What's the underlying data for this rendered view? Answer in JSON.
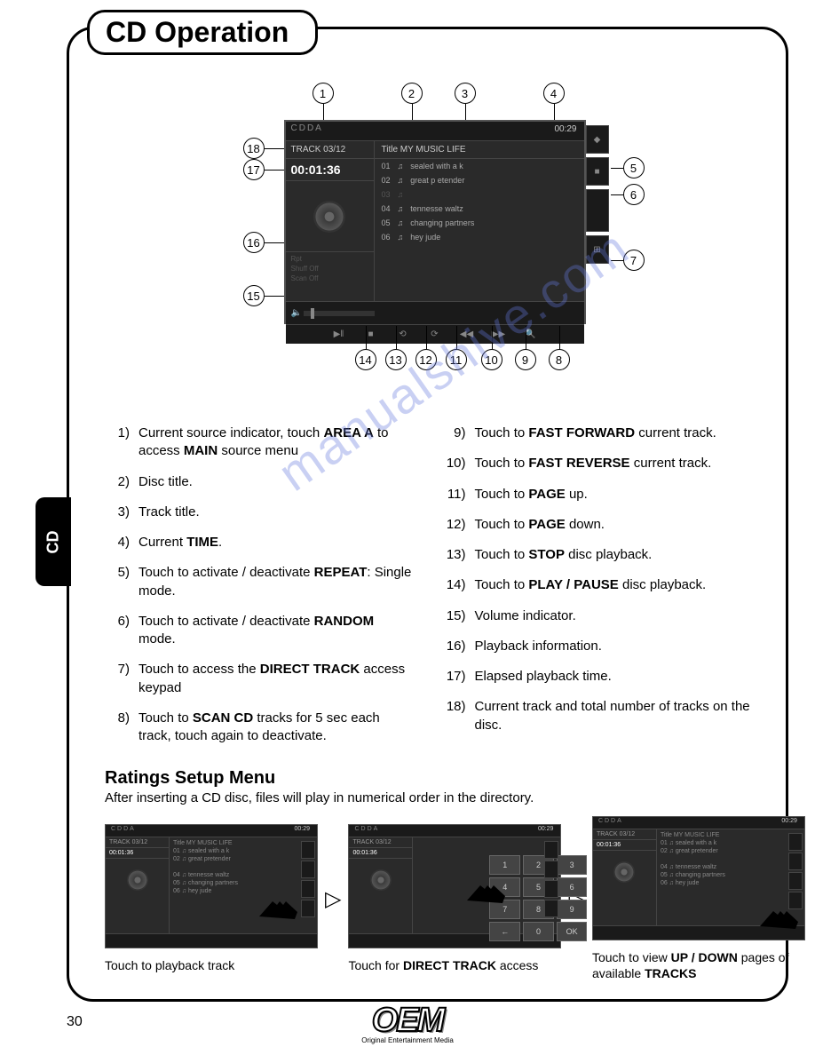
{
  "page_title": "CD Operation",
  "side_tab": "CD",
  "page_number": "30",
  "watermark": "manualshive.com",
  "logo": {
    "text": "OEM",
    "subtitle": "Original Entertainment Media"
  },
  "screen": {
    "source_label": "CDDA",
    "clock": "00:29",
    "track_counter": "TRACK 03/12",
    "elapsed": "00:01:36",
    "disc_title_label": "Title MY MUSIC LIFE",
    "tracks": [
      {
        "num": "01",
        "name": "sealed with a k"
      },
      {
        "num": "02",
        "name": "great p etender"
      },
      {
        "num": "03",
        "name": ""
      },
      {
        "num": "04",
        "name": "tennesse waltz"
      },
      {
        "num": "05",
        "name": "changing partners"
      },
      {
        "num": "06",
        "name": "hey jude"
      }
    ],
    "info_lines": [
      "Rpt",
      "Shuff Off",
      "Scan Off"
    ],
    "side_icons": [
      "◆",
      "■",
      "",
      "⊞"
    ],
    "ctrl_icons": [
      "▶‖",
      "■",
      "⟲",
      "⟳",
      "◀◀",
      "▶▶",
      "🔍"
    ]
  },
  "callouts_top": [
    "1",
    "2",
    "3",
    "4"
  ],
  "callouts_left": [
    "18",
    "17",
    "16",
    "15"
  ],
  "callouts_right": [
    "5",
    "6",
    "7"
  ],
  "callouts_bottom": [
    "14",
    "13",
    "12",
    "11",
    "10",
    "9",
    "8"
  ],
  "instructions_left": [
    {
      "n": "1)",
      "html": "Current source indicator, touch <b>AREA A</b> to access <b>MAIN</b> source menu"
    },
    {
      "n": "2)",
      "html": "Disc title."
    },
    {
      "n": "3)",
      "html": "Track title."
    },
    {
      "n": "4)",
      "html": "Current <b>TIME</b>."
    },
    {
      "n": "5)",
      "html": "Touch to activate / deactivate <b>REPEAT</b>: Single mode."
    },
    {
      "n": "6)",
      "html": "Touch to activate / deactivate <b>RANDOM</b> mode."
    },
    {
      "n": "7)",
      "html": "Touch to access the <b>DIRECT TRACK</b> access keypad"
    },
    {
      "n": "8)",
      "html": "Touch to <b>SCAN CD</b> tracks for 5 sec each track, touch again to deactivate."
    }
  ],
  "instructions_right": [
    {
      "n": "9)",
      "html": "Touch to <b>FAST FORWARD</b> current track."
    },
    {
      "n": "10)",
      "html": "Touch to <b>FAST REVERSE</b> current track."
    },
    {
      "n": "11)",
      "html": "Touch to <b>PAGE</b> up."
    },
    {
      "n": "12)",
      "html": "Touch to <b>PAGE</b> down."
    },
    {
      "n": "13)",
      "html": "Touch to <b>STOP</b> disc playback."
    },
    {
      "n": "14)",
      "html": "Touch to <b>PLAY / PAUSE</b> disc playback."
    },
    {
      "n": "15)",
      "html": "Volume indicator."
    },
    {
      "n": "16)",
      "html": "Playback information."
    },
    {
      "n": "17)",
      "html": "Elapsed playback time."
    },
    {
      "n": "18)",
      "html": "Current track and total number of tracks on the disc."
    }
  ],
  "ratings": {
    "heading": "Ratings Setup Menu",
    "subtitle": "After inserting a CD disc, files will play in numerical order in the directory.",
    "captions": [
      "Touch to playback track",
      "Touch for <b>DIRECT TRACK</b> access",
      "Touch to view <b>UP / DOWN</b> pages of available <b>TRACKS</b>"
    ],
    "keypad": [
      "1",
      "2",
      "3",
      "4",
      "5",
      "6",
      "7",
      "8",
      "9",
      "←",
      "0",
      "OK"
    ],
    "mini_title": "Title MY MUSIC LIFE",
    "mini_rows": [
      {
        "n": "01",
        "t": "sealed with a k"
      },
      {
        "n": "02",
        "t": "great pretender"
      },
      {
        "n": "04",
        "t": "tennesse waltz"
      },
      {
        "n": "05",
        "t": "changing partners"
      },
      {
        "n": "06",
        "t": "hey jude"
      }
    ]
  },
  "colors": {
    "screen_bg": "#2a2a2a",
    "screen_dark": "#1a1a1a",
    "border": "#444444",
    "text_light": "#cccccc",
    "text_dim": "#888888"
  }
}
